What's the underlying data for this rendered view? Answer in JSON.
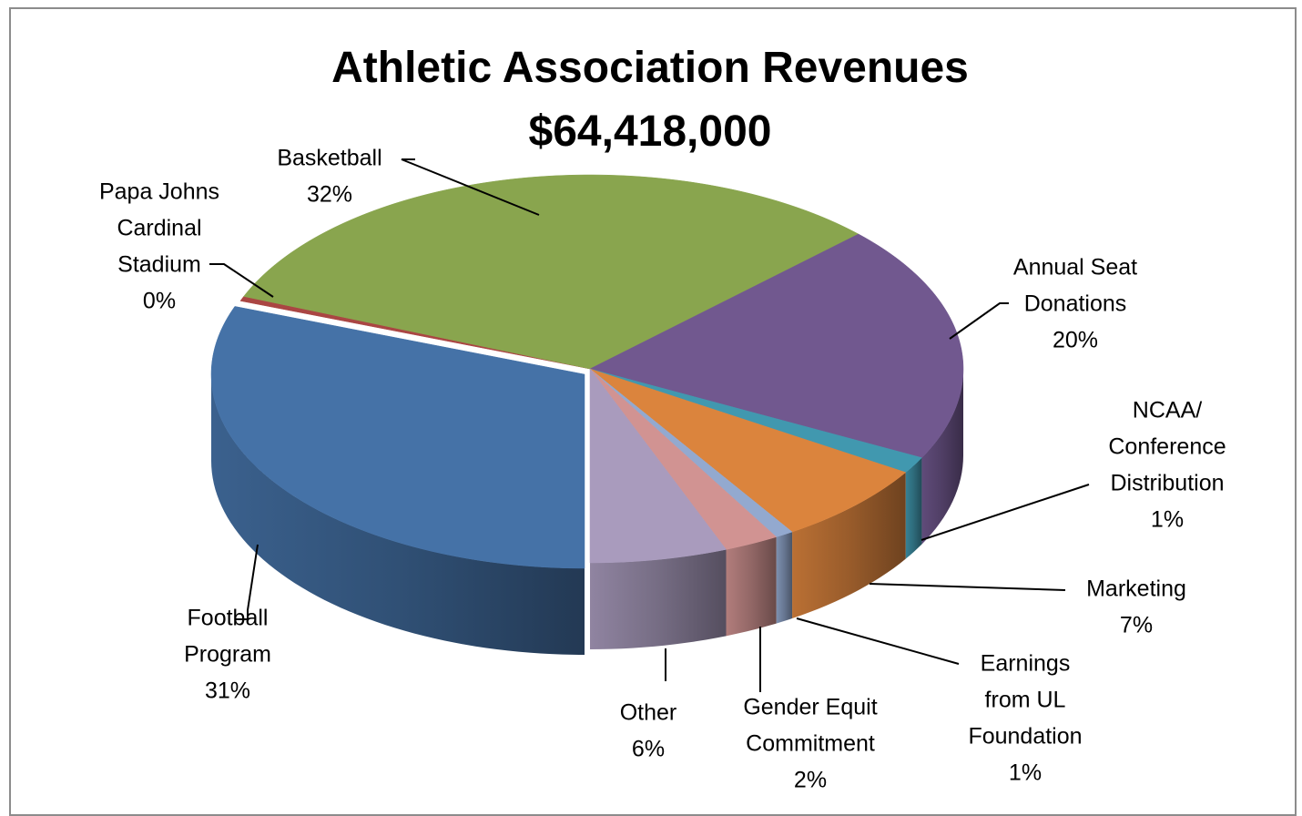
{
  "chart_data": {
    "type": "pie",
    "subtype": "3d-exploded-perspective",
    "title": "Athletic Association Revenues",
    "subtitle": "$64,418,000",
    "slices": [
      {
        "label_lines": [
          "Football",
          "Program"
        ],
        "pct_label": "31%",
        "value": 31,
        "color": "#4572A7"
      },
      {
        "label_lines": [
          "Papa Johns",
          "Cardinal",
          "Stadium"
        ],
        "pct_label": "0%",
        "value": 0.4,
        "color": "#AA4643"
      },
      {
        "label_lines": [
          "Basketball"
        ],
        "pct_label": "32%",
        "value": 32,
        "color": "#89A54E"
      },
      {
        "label_lines": [
          "Annual Seat",
          "Donations"
        ],
        "pct_label": "20%",
        "value": 20,
        "color": "#71588F"
      },
      {
        "label_lines": [
          "NCAA/",
          "Conference",
          "Distribution"
        ],
        "pct_label": "1%",
        "value": 1.4,
        "color": "#4198AF"
      },
      {
        "label_lines": [
          "Marketing"
        ],
        "pct_label": "7%",
        "value": 7,
        "color": "#DB843D"
      },
      {
        "label_lines": [
          "Earnings",
          "from UL",
          "Foundation"
        ],
        "pct_label": "1%",
        "value": 0.8,
        "color": "#93A9CF"
      },
      {
        "label_lines": [
          "Gender Equit",
          "Commitment"
        ],
        "pct_label": "2%",
        "value": 2.4,
        "color": "#D19392"
      },
      {
        "label_lines": [
          "Other"
        ],
        "pct_label": "6%",
        "value": 6,
        "color": "#A99BBD"
      }
    ],
    "legend": "none",
    "data_labels": "outside with leader lines"
  }
}
